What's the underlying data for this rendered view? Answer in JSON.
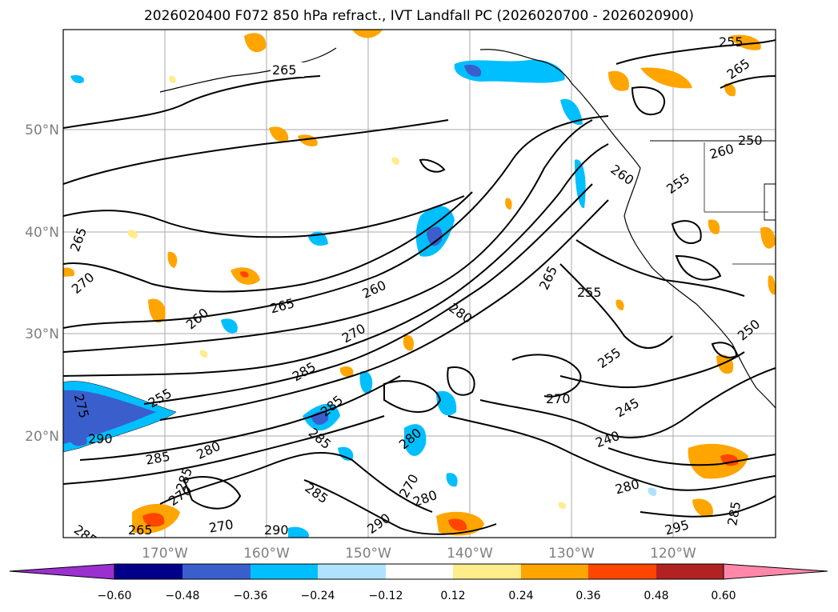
{
  "title": "2026020400 F072 850 hPa refract., IVT Landfall PC (2026020700 - 2026020900)",
  "map": {
    "lat_labels": [
      "50°N",
      "40°N",
      "30°N",
      "20°N"
    ],
    "lon_labels": [
      "170°W",
      "160°W",
      "150°W",
      "140°W",
      "130°W",
      "120°W"
    ],
    "contour_labels": [
      "265",
      "255",
      "265",
      "250",
      "260",
      "255",
      "260",
      "265",
      "270",
      "260",
      "265",
      "260",
      "270",
      "280",
      "265",
      "255",
      "250",
      "255",
      "275",
      "255",
      "290",
      "285",
      "270",
      "245",
      "240",
      "285",
      "280",
      "285",
      "280",
      "270",
      "285",
      "270",
      "280",
      "280",
      "290",
      "295",
      "285",
      "270",
      "265",
      "290",
      "285",
      "285",
      "285"
    ]
  },
  "colorbar": {
    "tick_labels": [
      "−0.60",
      "−0.48",
      "−0.36",
      "−0.24",
      "−0.12",
      "0.12",
      "0.24",
      "0.36",
      "0.48",
      "0.60"
    ],
    "colors": [
      "#9b30d0",
      "#00008b",
      "#3a5fcd",
      "#00bfff",
      "#b0e2ff",
      "#ffffff",
      "#ffec8b",
      "#ffa500",
      "#ff4500",
      "#b22222",
      "#ff88aa"
    ]
  }
}
